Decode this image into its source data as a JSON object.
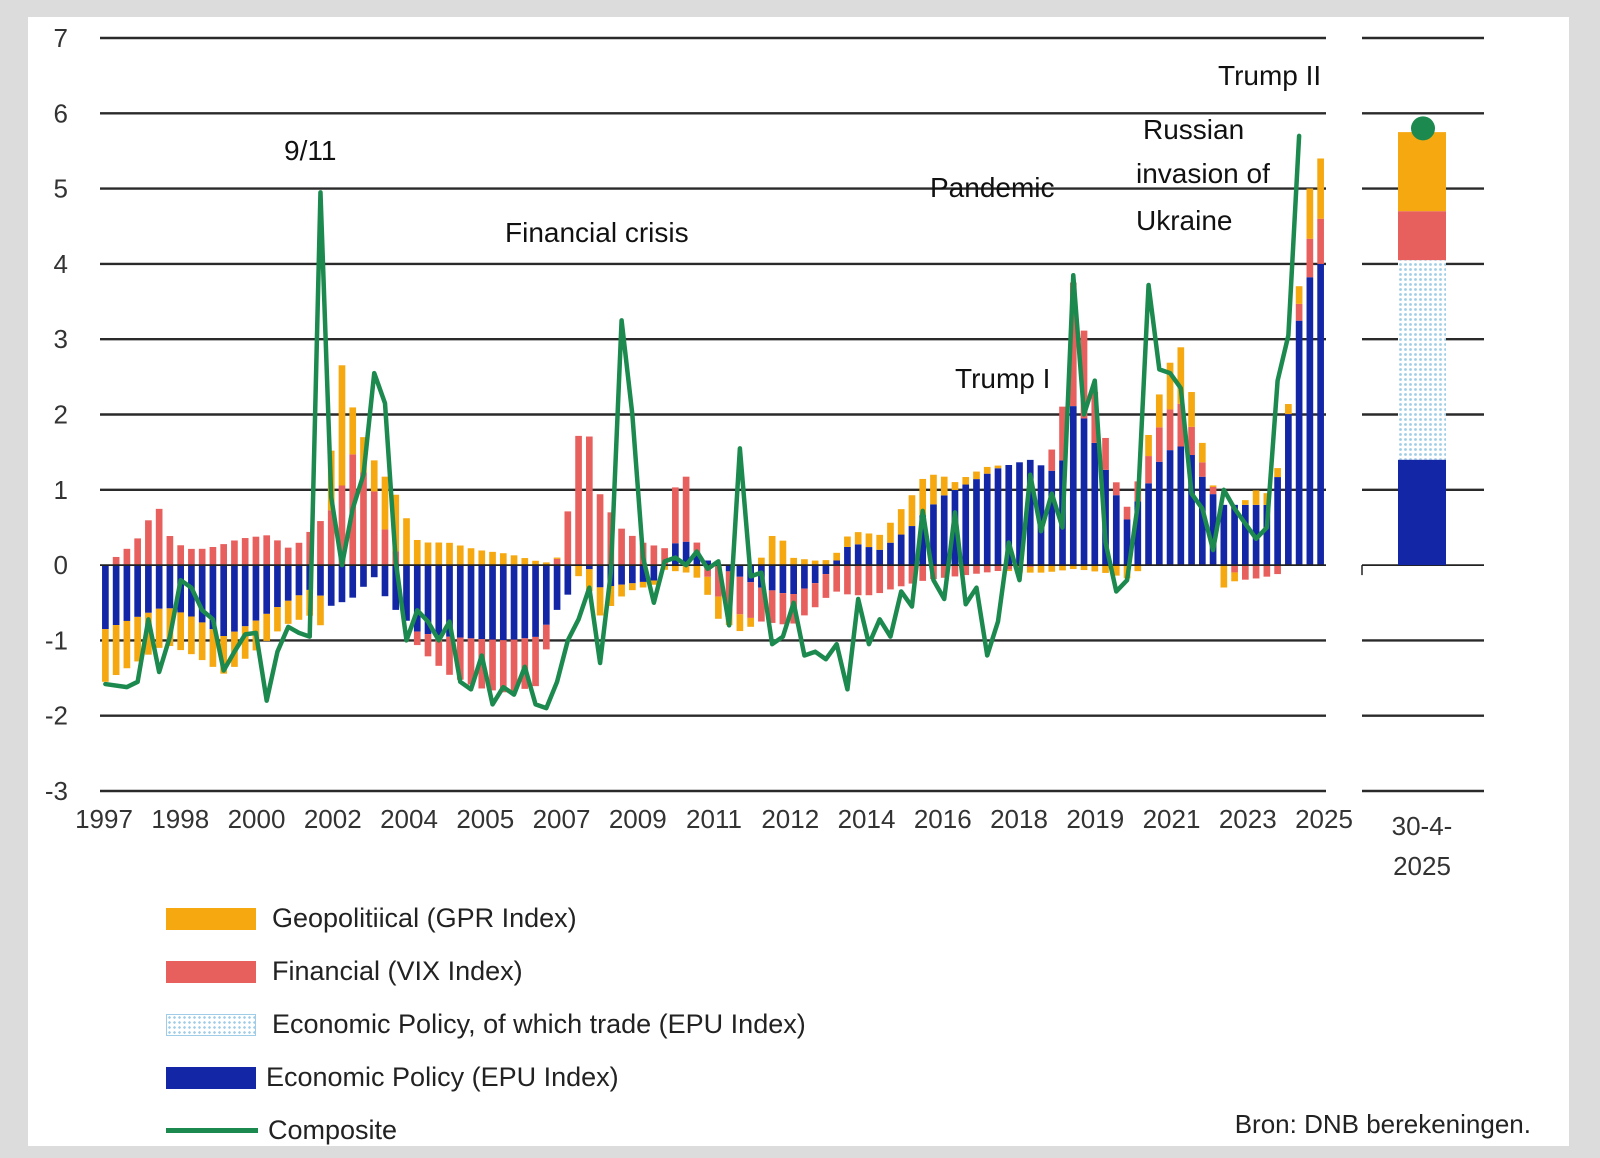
{
  "chart_data": {
    "type": "bar",
    "subtype": "stacked bar with line",
    "ylim": [
      -3,
      7
    ],
    "yticks": [
      -3,
      -2,
      -1,
      0,
      1,
      2,
      3,
      4,
      5,
      6,
      7
    ],
    "ytick_labels": [
      "-3",
      "-2",
      "-1",
      "0",
      "1",
      "2",
      "3",
      "4",
      "5",
      "6",
      "7"
    ],
    "xtick_labels": [
      "1997",
      "1998",
      "2000",
      "2002",
      "2004",
      "2005",
      "2007",
      "2009",
      "2011",
      "2012",
      "2014",
      "2016",
      "2018",
      "2019",
      "2021",
      "2023",
      "2025"
    ],
    "n_periods": 114,
    "colors": {
      "gpr": "#f5a80f",
      "vix": "#e8605e",
      "trade": "#a9d2ea",
      "epu": "#1226a6",
      "composite": "#1c8a4e",
      "grid": "#2a2a2a"
    },
    "series": [
      {
        "name": "Geopolitiical (GPR Index)",
        "key": "gpr"
      },
      {
        "name": "Financial (VIX Index)",
        "key": "vix"
      },
      {
        "name": "Economic Policy, of which trade (EPU Index)",
        "key": "trade"
      },
      {
        "name": "Economic Policy (EPU Index)",
        "key": "epu"
      },
      {
        "name": "Composite",
        "key": "composite"
      }
    ],
    "keypoints": {
      "epu": [
        [
          0,
          -0.85
        ],
        [
          4,
          -0.7
        ],
        [
          8,
          -0.55
        ],
        [
          12,
          -0.7
        ],
        [
          16,
          -0.95
        ],
        [
          20,
          -0.75
        ],
        [
          24,
          -0.5
        ],
        [
          28,
          -0.3
        ],
        [
          30,
          -0.55
        ],
        [
          33,
          -0.45
        ],
        [
          36,
          -0.15
        ],
        [
          38,
          -0.5
        ],
        [
          42,
          -0.9
        ],
        [
          46,
          -0.95
        ],
        [
          50,
          -0.98
        ],
        [
          54,
          -1.0
        ],
        [
          58,
          -0.95
        ],
        [
          62,
          -0.4
        ],
        [
          64,
          0.15
        ],
        [
          66,
          -0.3
        ],
        [
          70,
          -0.25
        ],
        [
          74,
          -0.2
        ],
        [
          77,
          0.4
        ],
        [
          80,
          0.1
        ],
        [
          84,
          -0.1
        ],
        [
          88,
          -0.3
        ],
        [
          92,
          -0.4
        ],
        [
          96,
          -0.2
        ],
        [
          100,
          0.3
        ],
        [
          104,
          0.2
        ],
        [
          108,
          0.5
        ],
        [
          112,
          0.9
        ],
        [
          116,
          1.1
        ],
        [
          120,
          1.3
        ],
        [
          124,
          1.4
        ],
        [
          128,
          1.2
        ],
        [
          130,
          2.2
        ],
        [
          132,
          1.8
        ],
        [
          134,
          1.3
        ],
        [
          137,
          0.6
        ],
        [
          140,
          1.1
        ],
        [
          142,
          1.5
        ],
        [
          145,
          1.6
        ],
        [
          148,
          1.0
        ],
        [
          150,
          0.8
        ],
        [
          153,
          0.8
        ],
        [
          156,
          0.8
        ],
        [
          158,
          1.4
        ],
        [
          160,
          3.2
        ],
        [
          162,
          4.0
        ],
        [
          163,
          4.0
        ]
      ],
      "vix": [
        [
          0,
          0.0
        ],
        [
          4,
          0.3
        ],
        [
          7,
          0.8
        ],
        [
          9,
          0.3
        ],
        [
          12,
          0.2
        ],
        [
          15,
          0.25
        ],
        [
          18,
          0.35
        ],
        [
          22,
          0.4
        ],
        [
          25,
          0.2
        ],
        [
          28,
          0.5
        ],
        [
          31,
          0.8
        ],
        [
          33,
          1.5
        ],
        [
          36,
          1.0
        ],
        [
          38,
          0.3
        ],
        [
          42,
          -0.2
        ],
        [
          46,
          -0.5
        ],
        [
          50,
          -0.65
        ],
        [
          54,
          -0.7
        ],
        [
          58,
          -0.65
        ],
        [
          61,
          0.2
        ],
        [
          63,
          1.2
        ],
        [
          64,
          2.3
        ],
        [
          66,
          1.0
        ],
        [
          69,
          0.5
        ],
        [
          72,
          0.3
        ],
        [
          76,
          0.2
        ],
        [
          77,
          1.4
        ],
        [
          79,
          0.2
        ],
        [
          82,
          -0.4
        ],
        [
          85,
          -0.5
        ],
        [
          88,
          -0.45
        ],
        [
          92,
          -0.4
        ],
        [
          96,
          -0.3
        ],
        [
          100,
          -0.4
        ],
        [
          103,
          -0.4
        ],
        [
          106,
          -0.3
        ],
        [
          110,
          -0.2
        ],
        [
          114,
          -0.15
        ],
        [
          118,
          -0.1
        ],
        [
          122,
          -0.05
        ],
        [
          126,
          0.0
        ],
        [
          129,
          0.9
        ],
        [
          130,
          1.8
        ],
        [
          132,
          0.8
        ],
        [
          136,
          0.1
        ],
        [
          139,
          0.3
        ],
        [
          142,
          0.5
        ],
        [
          144,
          0.6
        ],
        [
          147,
          0.2
        ],
        [
          150,
          0.0
        ],
        [
          153,
          -0.2
        ],
        [
          156,
          -0.15
        ],
        [
          158,
          -0.1
        ],
        [
          160,
          0.2
        ],
        [
          162,
          0.6
        ],
        [
          163,
          0.6
        ]
      ],
      "gpr": [
        [
          0,
          -0.7
        ],
        [
          4,
          -0.6
        ],
        [
          8,
          -0.5
        ],
        [
          12,
          -0.5
        ],
        [
          16,
          -0.5
        ],
        [
          20,
          -0.4
        ],
        [
          24,
          -0.3
        ],
        [
          28,
          -0.35
        ],
        [
          30,
          -0.45
        ],
        [
          31,
          3.8
        ],
        [
          32,
          0.8
        ],
        [
          34,
          0.5
        ],
        [
          36,
          0.4
        ],
        [
          38,
          0.8
        ],
        [
          40,
          0.7
        ],
        [
          42,
          0.3
        ],
        [
          46,
          0.3
        ],
        [
          50,
          0.2
        ],
        [
          54,
          0.15
        ],
        [
          58,
          0.05
        ],
        [
          62,
          0.0
        ],
        [
          66,
          -0.4
        ],
        [
          70,
          -0.1
        ],
        [
          74,
          -0.05
        ],
        [
          78,
          -0.1
        ],
        [
          82,
          -0.3
        ],
        [
          86,
          -0.2
        ],
        [
          88,
          0.1
        ],
        [
          90,
          0.5
        ],
        [
          92,
          0.1
        ],
        [
          96,
          0.05
        ],
        [
          100,
          0.15
        ],
        [
          104,
          0.2
        ],
        [
          106,
          0.3
        ],
        [
          108,
          0.4
        ],
        [
          110,
          0.5
        ],
        [
          114,
          0.1
        ],
        [
          118,
          0.1
        ],
        [
          122,
          -0.05
        ],
        [
          126,
          -0.1
        ],
        [
          130,
          -0.05
        ],
        [
          134,
          -0.1
        ],
        [
          138,
          -0.2
        ],
        [
          140,
          0.3
        ],
        [
          142,
          0.5
        ],
        [
          144,
          0.8
        ],
        [
          146,
          0.4
        ],
        [
          148,
          0.15
        ],
        [
          150,
          -0.3
        ],
        [
          154,
          0.2
        ],
        [
          158,
          0.1
        ],
        [
          160,
          0.2
        ],
        [
          162,
          0.8
        ],
        [
          163,
          0.8
        ]
      ],
      "composite": [
        [
          0,
          -1.58
        ],
        [
          2,
          -1.62
        ],
        [
          3,
          -1.55
        ],
        [
          4,
          -0.72
        ],
        [
          5,
          -1.42
        ],
        [
          6,
          -0.95
        ],
        [
          7,
          -0.2
        ],
        [
          8,
          -0.3
        ],
        [
          9,
          -0.6
        ],
        [
          10,
          -0.72
        ],
        [
          11,
          -1.4
        ],
        [
          12,
          -1.15
        ],
        [
          13,
          -0.92
        ],
        [
          14,
          -0.9
        ],
        [
          15,
          -1.8
        ],
        [
          16,
          -1.15
        ],
        [
          17,
          -0.82
        ],
        [
          18,
          -0.9
        ],
        [
          19,
          -0.95
        ],
        [
          20,
          4.95
        ],
        [
          21,
          0.9
        ],
        [
          22,
          0.0
        ],
        [
          23,
          0.75
        ],
        [
          24,
          1.2
        ],
        [
          25,
          2.55
        ],
        [
          26,
          2.15
        ],
        [
          27,
          0.05
        ],
        [
          28,
          -1.0
        ],
        [
          29,
          -0.6
        ],
        [
          30,
          -0.75
        ],
        [
          31,
          -1.0
        ],
        [
          32,
          -0.75
        ],
        [
          33,
          -1.55
        ],
        [
          34,
          -1.65
        ],
        [
          35,
          -1.2
        ],
        [
          36,
          -1.85
        ],
        [
          37,
          -1.62
        ],
        [
          38,
          -1.72
        ],
        [
          39,
          -1.35
        ],
        [
          40,
          -1.85
        ],
        [
          41,
          -1.9
        ],
        [
          42,
          -1.55
        ],
        [
          43,
          -1.0
        ],
        [
          44,
          -0.72
        ],
        [
          45,
          -0.3
        ],
        [
          46,
          -1.3
        ],
        [
          47,
          -0.1
        ],
        [
          48,
          3.25
        ],
        [
          49,
          2.0
        ],
        [
          50,
          0.1
        ],
        [
          51,
          -0.5
        ],
        [
          52,
          0.05
        ],
        [
          53,
          0.1
        ],
        [
          54,
          0.0
        ],
        [
          55,
          0.18
        ],
        [
          56,
          -0.05
        ],
        [
          57,
          0.05
        ],
        [
          58,
          -0.8
        ],
        [
          59,
          1.55
        ],
        [
          60,
          -0.15
        ],
        [
          61,
          -0.1
        ],
        [
          62,
          -1.05
        ],
        [
          63,
          -0.95
        ],
        [
          64,
          -0.5
        ],
        [
          65,
          -1.2
        ],
        [
          66,
          -1.15
        ],
        [
          67,
          -1.25
        ],
        [
          68,
          -1.05
        ],
        [
          69,
          -1.65
        ],
        [
          70,
          -0.45
        ],
        [
          71,
          -1.05
        ],
        [
          72,
          -0.72
        ],
        [
          73,
          -0.95
        ],
        [
          74,
          -0.35
        ],
        [
          75,
          -0.55
        ],
        [
          76,
          0.72
        ],
        [
          77,
          -0.2
        ],
        [
          78,
          -0.45
        ],
        [
          79,
          0.7
        ],
        [
          80,
          -0.52
        ],
        [
          81,
          -0.3
        ],
        [
          82,
          -1.2
        ],
        [
          83,
          -0.75
        ],
        [
          84,
          0.3
        ],
        [
          85,
          -0.2
        ],
        [
          86,
          1.2
        ],
        [
          87,
          0.45
        ],
        [
          88,
          0.95
        ],
        [
          89,
          0.5
        ],
        [
          90,
          3.85
        ],
        [
          91,
          2.0
        ],
        [
          92,
          2.45
        ],
        [
          93,
          0.3
        ],
        [
          94,
          -0.35
        ],
        [
          95,
          -0.2
        ],
        [
          96,
          0.8
        ],
        [
          97,
          3.72
        ],
        [
          98,
          2.6
        ],
        [
          99,
          2.55
        ],
        [
          100,
          2.35
        ],
        [
          101,
          0.95
        ],
        [
          102,
          0.75
        ],
        [
          103,
          0.2
        ],
        [
          104,
          1.0
        ],
        [
          105,
          0.75
        ],
        [
          106,
          0.55
        ],
        [
          107,
          0.35
        ],
        [
          108,
          0.5
        ],
        [
          109,
          2.45
        ],
        [
          110,
          3.05
        ],
        [
          111,
          5.7
        ]
      ]
    },
    "annotations": [
      {
        "text": "9/11"
      },
      {
        "text": "Financial crisis"
      },
      {
        "text": "Pandemic"
      },
      {
        "text": "Trump I"
      },
      {
        "text": "Russian invasion of Ukraine"
      },
      {
        "text": "Trump II"
      }
    ],
    "side_panel": {
      "label": "30-4-2025",
      "epu": 1.4,
      "trade": 2.65,
      "vix": 0.65,
      "gpr": 1.05,
      "composite": 5.8
    },
    "source": "Bron: DNB berekeningen."
  }
}
